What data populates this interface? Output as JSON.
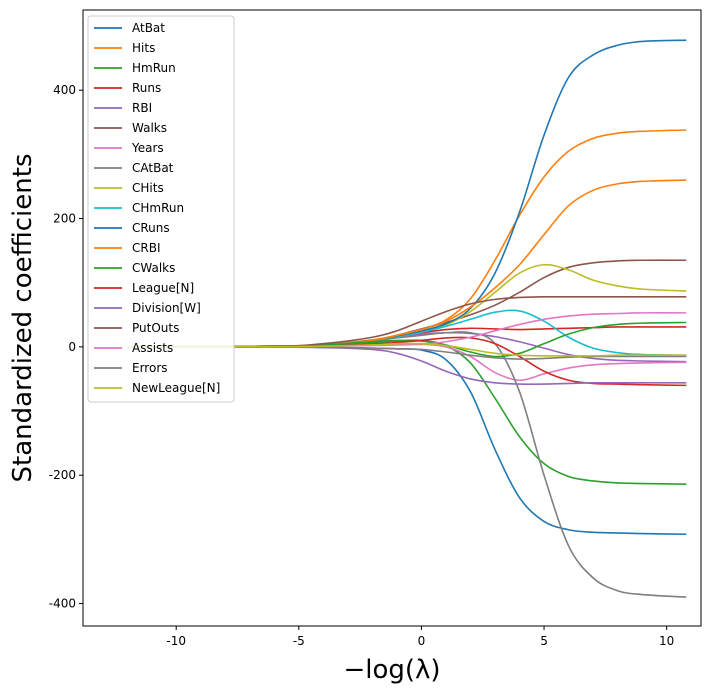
{
  "chart_data": {
    "type": "line",
    "xlabel": "−log(λ)",
    "ylabel": "Standardized coefficients",
    "xlim": [
      -13.8,
      11.4
    ],
    "ylim": [
      -435,
      525
    ],
    "xticks": [
      -10,
      -5,
      0,
      5,
      10
    ],
    "yticks": [
      400,
      200,
      0,
      -200,
      -400
    ],
    "legend_position": "upper-left",
    "grid": false,
    "series": [
      {
        "name": "AtBat",
        "color": "#1f77b4",
        "points": [
          [
            -12,
            0
          ],
          [
            -6,
            -0.3
          ],
          [
            -4,
            -1
          ],
          [
            -2,
            -2
          ],
          [
            -1,
            -3
          ],
          [
            0,
            -5
          ],
          [
            1,
            -20
          ],
          [
            2,
            -70
          ],
          [
            3,
            -160
          ],
          [
            4,
            -235
          ],
          [
            5,
            -272
          ],
          [
            6,
            -285
          ],
          [
            7,
            -289
          ],
          [
            8,
            -290
          ],
          [
            9,
            -291
          ],
          [
            10.8,
            -292
          ]
        ]
      },
      {
        "name": "Hits",
        "color": "#ff7f0e",
        "points": [
          [
            -12,
            0
          ],
          [
            -6,
            1
          ],
          [
            -4,
            4
          ],
          [
            -2,
            11
          ],
          [
            -1,
            18
          ],
          [
            0,
            27
          ],
          [
            1,
            42
          ],
          [
            2,
            75
          ],
          [
            3,
            135
          ],
          [
            4,
            205
          ],
          [
            5,
            265
          ],
          [
            6,
            305
          ],
          [
            7,
            325
          ],
          [
            8,
            333
          ],
          [
            9,
            336
          ],
          [
            10.8,
            338
          ]
        ]
      },
      {
        "name": "HmRun",
        "color": "#2ca02c",
        "points": [
          [
            -12,
            0
          ],
          [
            -6,
            0.5
          ],
          [
            -4,
            2
          ],
          [
            -2,
            6
          ],
          [
            -1,
            9
          ],
          [
            0,
            10
          ],
          [
            1,
            2
          ],
          [
            2,
            -25
          ],
          [
            3,
            -80
          ],
          [
            4,
            -140
          ],
          [
            5,
            -182
          ],
          [
            6,
            -202
          ],
          [
            7,
            -209
          ],
          [
            8,
            -212
          ],
          [
            9,
            -213
          ],
          [
            10.8,
            -214
          ]
        ]
      },
      {
        "name": "Runs",
        "color": "#d62728",
        "points": [
          [
            -12,
            0
          ],
          [
            -6,
            1
          ],
          [
            -4,
            3
          ],
          [
            -2,
            10
          ],
          [
            -1,
            16
          ],
          [
            0,
            22
          ],
          [
            1,
            27
          ],
          [
            2,
            29
          ],
          [
            3,
            28
          ],
          [
            4,
            27
          ],
          [
            5,
            28
          ],
          [
            6,
            29
          ],
          [
            7,
            30
          ],
          [
            8,
            31
          ],
          [
            9,
            31
          ],
          [
            10.8,
            31
          ]
        ]
      },
      {
        "name": "RBI",
        "color": "#9467bd",
        "points": [
          [
            -12,
            0
          ],
          [
            -6,
            1
          ],
          [
            -4,
            3
          ],
          [
            -2,
            10
          ],
          [
            -1,
            15
          ],
          [
            0,
            20
          ],
          [
            1,
            22
          ],
          [
            2,
            21
          ],
          [
            3,
            16
          ],
          [
            4,
            8
          ],
          [
            5,
            -2
          ],
          [
            6,
            -12
          ],
          [
            7,
            -18
          ],
          [
            8,
            -21
          ],
          [
            9,
            -22
          ],
          [
            10.8,
            -23
          ]
        ]
      },
      {
        "name": "Walks",
        "color": "#8c564b",
        "points": [
          [
            -12,
            0
          ],
          [
            -6,
            1
          ],
          [
            -4,
            3
          ],
          [
            -2,
            10
          ],
          [
            -1,
            18
          ],
          [
            0,
            28
          ],
          [
            1,
            38
          ],
          [
            2,
            50
          ],
          [
            3,
            65
          ],
          [
            4,
            85
          ],
          [
            5,
            108
          ],
          [
            6,
            124
          ],
          [
            7,
            131
          ],
          [
            8,
            134
          ],
          [
            9,
            135
          ],
          [
            10.8,
            135
          ]
        ]
      },
      {
        "name": "Years",
        "color": "#e377c2",
        "points": [
          [
            -12,
            0
          ],
          [
            -6,
            0.3
          ],
          [
            -4,
            1
          ],
          [
            -2,
            3
          ],
          [
            -1,
            4
          ],
          [
            0,
            4
          ],
          [
            1,
            0
          ],
          [
            2,
            -15
          ],
          [
            3,
            -40
          ],
          [
            4,
            -52
          ],
          [
            5,
            -42
          ],
          [
            6,
            -33
          ],
          [
            7,
            -28
          ],
          [
            8,
            -26
          ],
          [
            9,
            -25
          ],
          [
            10.8,
            -24
          ]
        ]
      },
      {
        "name": "CAtBat",
        "color": "#7f7f7f",
        "points": [
          [
            -12,
            0
          ],
          [
            -6,
            1
          ],
          [
            -4,
            3
          ],
          [
            -2,
            9
          ],
          [
            -1,
            14
          ],
          [
            0,
            18
          ],
          [
            1,
            22
          ],
          [
            2,
            22
          ],
          [
            3,
            5
          ],
          [
            4,
            -70
          ],
          [
            5,
            -200
          ],
          [
            6,
            -310
          ],
          [
            7,
            -360
          ],
          [
            8,
            -380
          ],
          [
            9,
            -386
          ],
          [
            10.8,
            -390
          ]
        ]
      },
      {
        "name": "CHits",
        "color": "#bcbd22",
        "points": [
          [
            -12,
            0
          ],
          [
            -6,
            1
          ],
          [
            -4,
            3
          ],
          [
            -2,
            10
          ],
          [
            -1,
            16
          ],
          [
            0,
            23
          ],
          [
            1,
            34
          ],
          [
            2,
            55
          ],
          [
            3,
            85
          ],
          [
            4,
            115
          ],
          [
            5,
            128
          ],
          [
            6,
            120
          ],
          [
            7,
            104
          ],
          [
            8,
            95
          ],
          [
            9,
            90
          ],
          [
            10.8,
            87
          ]
        ]
      },
      {
        "name": "CHmRun",
        "color": "#17becf",
        "points": [
          [
            -12,
            0
          ],
          [
            -6,
            1
          ],
          [
            -4,
            3
          ],
          [
            -2,
            10
          ],
          [
            -1,
            16
          ],
          [
            0,
            23
          ],
          [
            1,
            32
          ],
          [
            2,
            43
          ],
          [
            3,
            54
          ],
          [
            4,
            56
          ],
          [
            5,
            40
          ],
          [
            6,
            15
          ],
          [
            7,
            -2
          ],
          [
            8,
            -9
          ],
          [
            9,
            -12
          ],
          [
            10.8,
            -13
          ]
        ]
      },
      {
        "name": "CRuns",
        "color": "#1f77b4",
        "points": [
          [
            -12,
            0
          ],
          [
            -6,
            1
          ],
          [
            -4,
            3
          ],
          [
            -2,
            10
          ],
          [
            -1,
            17
          ],
          [
            0,
            25
          ],
          [
            1,
            36
          ],
          [
            2,
            60
          ],
          [
            3,
            115
          ],
          [
            4,
            210
          ],
          [
            5,
            330
          ],
          [
            6,
            420
          ],
          [
            7,
            455
          ],
          [
            8,
            470
          ],
          [
            9,
            476
          ],
          [
            10.8,
            478
          ]
        ]
      },
      {
        "name": "CRBI",
        "color": "#ff7f0e",
        "points": [
          [
            -12,
            0
          ],
          [
            -6,
            1
          ],
          [
            -4,
            3
          ],
          [
            -2,
            10
          ],
          [
            -1,
            18
          ],
          [
            0,
            27
          ],
          [
            1,
            40
          ],
          [
            2,
            62
          ],
          [
            3,
            92
          ],
          [
            4,
            128
          ],
          [
            5,
            175
          ],
          [
            6,
            220
          ],
          [
            7,
            244
          ],
          [
            8,
            254
          ],
          [
            9,
            258
          ],
          [
            10.8,
            260
          ]
        ]
      },
      {
        "name": "CWalks",
        "color": "#2ca02c",
        "points": [
          [
            -12,
            0
          ],
          [
            -6,
            1
          ],
          [
            -4,
            3
          ],
          [
            -2,
            8
          ],
          [
            -1,
            10
          ],
          [
            0,
            9
          ],
          [
            1,
            3
          ],
          [
            2,
            -8
          ],
          [
            3,
            -15
          ],
          [
            4,
            -10
          ],
          [
            5,
            5
          ],
          [
            6,
            20
          ],
          [
            7,
            30
          ],
          [
            8,
            35
          ],
          [
            9,
            37
          ],
          [
            10.8,
            38
          ]
        ]
      },
      {
        "name": "League[N]",
        "color": "#d62728",
        "points": [
          [
            -12,
            0
          ],
          [
            -6,
            0.2
          ],
          [
            -4,
            1
          ],
          [
            -2,
            4
          ],
          [
            -1,
            7
          ],
          [
            0,
            10
          ],
          [
            1,
            14
          ],
          [
            2,
            14
          ],
          [
            3,
            5
          ],
          [
            4,
            -15
          ],
          [
            5,
            -38
          ],
          [
            6,
            -52
          ],
          [
            7,
            -57
          ],
          [
            8,
            -58
          ],
          [
            9,
            -59
          ],
          [
            10.8,
            -60
          ]
        ]
      },
      {
        "name": "Division[W]",
        "color": "#9467bd",
        "points": [
          [
            -12,
            0
          ],
          [
            -6,
            -0.3
          ],
          [
            -4,
            -1
          ],
          [
            -2,
            -4
          ],
          [
            -1,
            -10
          ],
          [
            0,
            -22
          ],
          [
            1,
            -38
          ],
          [
            2,
            -50
          ],
          [
            3,
            -56
          ],
          [
            4,
            -58
          ],
          [
            5,
            -58
          ],
          [
            6,
            -57
          ],
          [
            7,
            -56
          ],
          [
            8,
            -56
          ],
          [
            9,
            -56
          ],
          [
            10.8,
            -56
          ]
        ]
      },
      {
        "name": "PutOuts",
        "color": "#8c564b",
        "points": [
          [
            -12,
            0
          ],
          [
            -6,
            1
          ],
          [
            -4,
            5
          ],
          [
            -2,
            15
          ],
          [
            -1,
            25
          ],
          [
            0,
            40
          ],
          [
            1,
            55
          ],
          [
            2,
            67
          ],
          [
            3,
            74
          ],
          [
            4,
            77
          ],
          [
            5,
            78
          ],
          [
            6,
            78
          ],
          [
            7,
            78
          ],
          [
            8,
            78
          ],
          [
            9,
            78
          ],
          [
            10.8,
            78
          ]
        ]
      },
      {
        "name": "Assists",
        "color": "#e377c2",
        "points": [
          [
            -12,
            0
          ],
          [
            -6,
            0.2
          ],
          [
            -4,
            1
          ],
          [
            -2,
            2
          ],
          [
            -1,
            3
          ],
          [
            0,
            4
          ],
          [
            1,
            8
          ],
          [
            2,
            15
          ],
          [
            3,
            25
          ],
          [
            4,
            35
          ],
          [
            5,
            43
          ],
          [
            6,
            48
          ],
          [
            7,
            51
          ],
          [
            8,
            52
          ],
          [
            9,
            53
          ],
          [
            10.8,
            53
          ]
        ]
      },
      {
        "name": "Errors",
        "color": "#7f7f7f",
        "points": [
          [
            -12,
            0
          ],
          [
            -6,
            0
          ],
          [
            -4,
            -0.5
          ],
          [
            -2,
            -2
          ],
          [
            -1,
            -3
          ],
          [
            0,
            -4
          ],
          [
            1,
            -8
          ],
          [
            2,
            -13
          ],
          [
            3,
            -17
          ],
          [
            4,
            -19
          ],
          [
            5,
            -18
          ],
          [
            6,
            -16
          ],
          [
            7,
            -15
          ],
          [
            8,
            -15
          ],
          [
            9,
            -15
          ],
          [
            10.8,
            -15
          ]
        ]
      },
      {
        "name": "NewLeague[N]",
        "color": "#bcbd22",
        "points": [
          [
            -12,
            0
          ],
          [
            -6,
            0.3
          ],
          [
            -4,
            1
          ],
          [
            -2,
            3
          ],
          [
            -1,
            5
          ],
          [
            0,
            5
          ],
          [
            1,
            2
          ],
          [
            2,
            -4
          ],
          [
            3,
            -10
          ],
          [
            4,
            -13
          ],
          [
            5,
            -14
          ],
          [
            6,
            -14
          ],
          [
            7,
            -14
          ],
          [
            8,
            -13
          ],
          [
            9,
            -13
          ],
          [
            10.8,
            -13
          ]
        ]
      }
    ]
  }
}
